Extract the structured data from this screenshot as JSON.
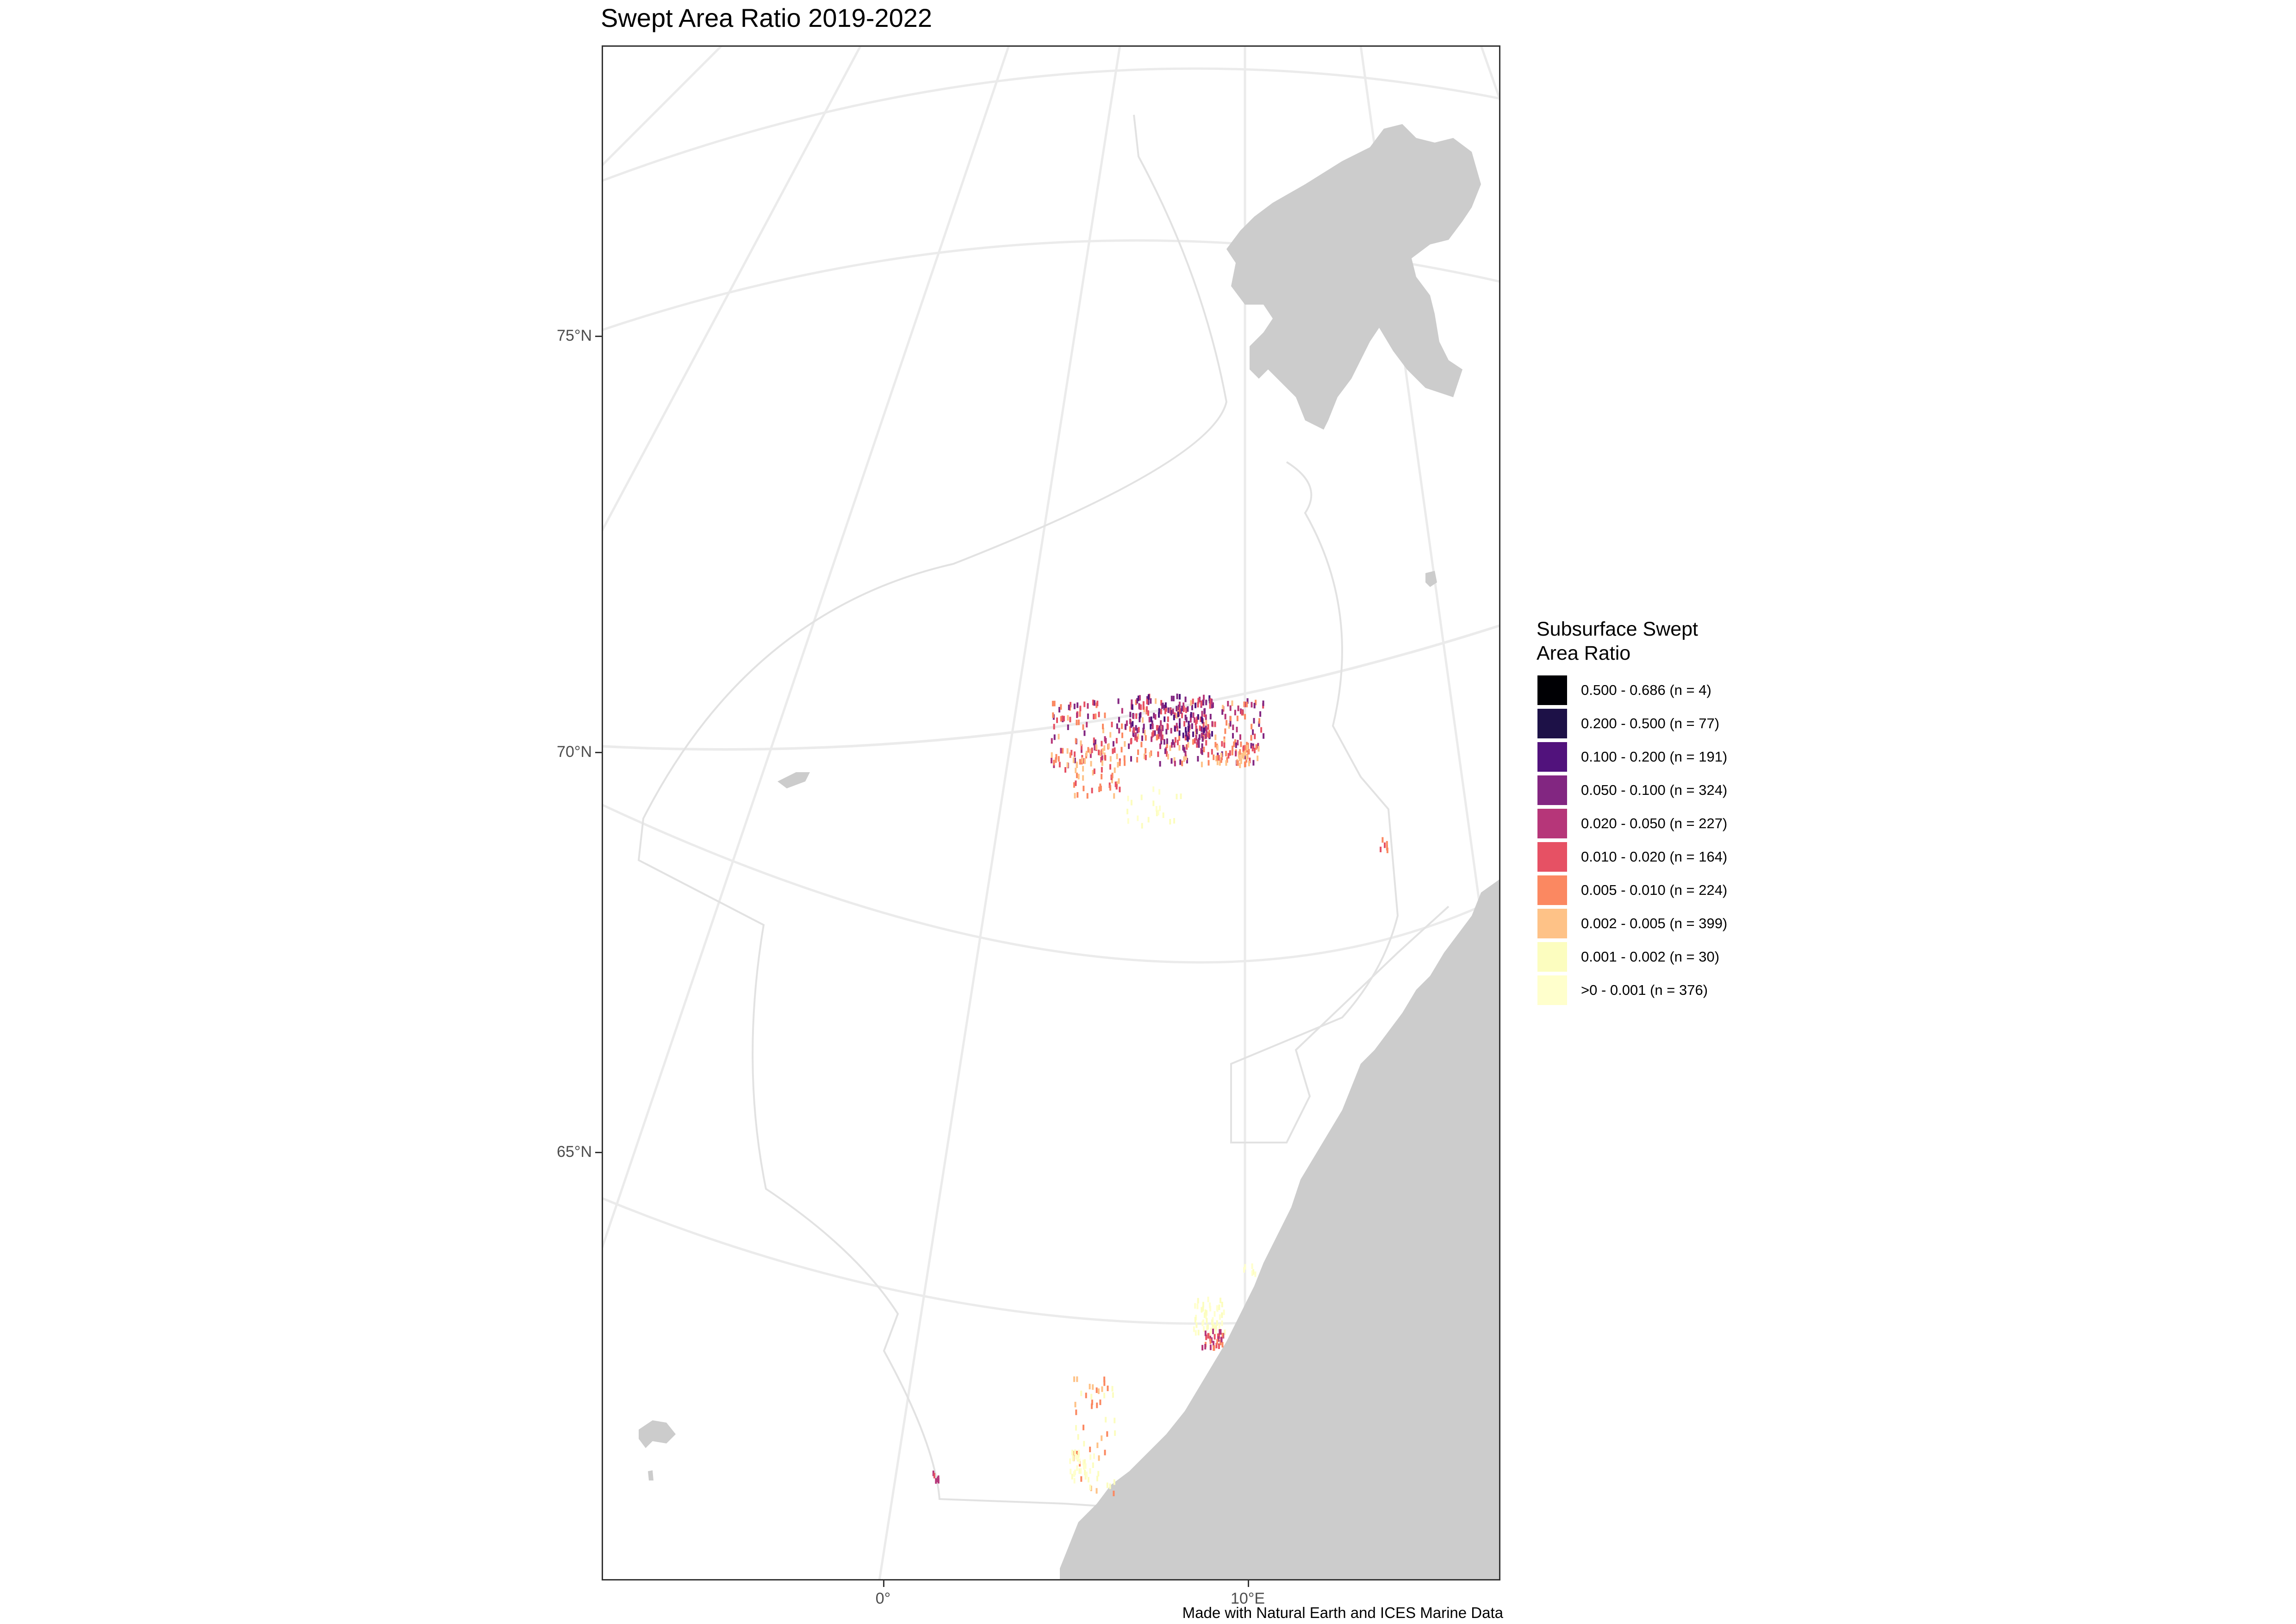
{
  "title": "Swept Area Ratio 2019-2022",
  "caption": "Made with Natural Earth and ICES Marine Data",
  "axes": {
    "y_labels": [
      "75°N",
      "70°N",
      "65°N"
    ],
    "x_labels": [
      "0°",
      "10°E"
    ]
  },
  "legend": {
    "title_line1": "Subsurface Swept",
    "title_line2": "Area Ratio",
    "items": [
      {
        "label": "0.500 - 0.686 (n = 4)",
        "color": "#000004"
      },
      {
        "label": "0.200 - 0.500 (n = 77)",
        "color": "#1d1147"
      },
      {
        "label": "0.100 - 0.200 (n = 191)",
        "color": "#51127c"
      },
      {
        "label": "0.050 - 0.100 (n = 324)",
        "color": "#822681"
      },
      {
        "label": "0.020 - 0.050 (n = 227)",
        "color": "#b63679"
      },
      {
        "label": "0.010 - 0.020 (n = 164)",
        "color": "#e65164"
      },
      {
        "label": "0.005 - 0.010 (n = 224)",
        "color": "#fb8861"
      },
      {
        "label": "0.002 - 0.005 (n = 399)",
        "color": "#fec287"
      },
      {
        "label": "0.001 - 0.002 (n = 30)",
        "color": "#fcfdbf"
      },
      {
        "label": ">0 - 0.001 (n = 376)",
        "color": "#ffffcc"
      }
    ]
  },
  "colors": {
    "land": "#cccccc",
    "graticule": "#ebebeb",
    "eez_boundary": "#e2e2e2",
    "panel_border": "#333333"
  }
}
